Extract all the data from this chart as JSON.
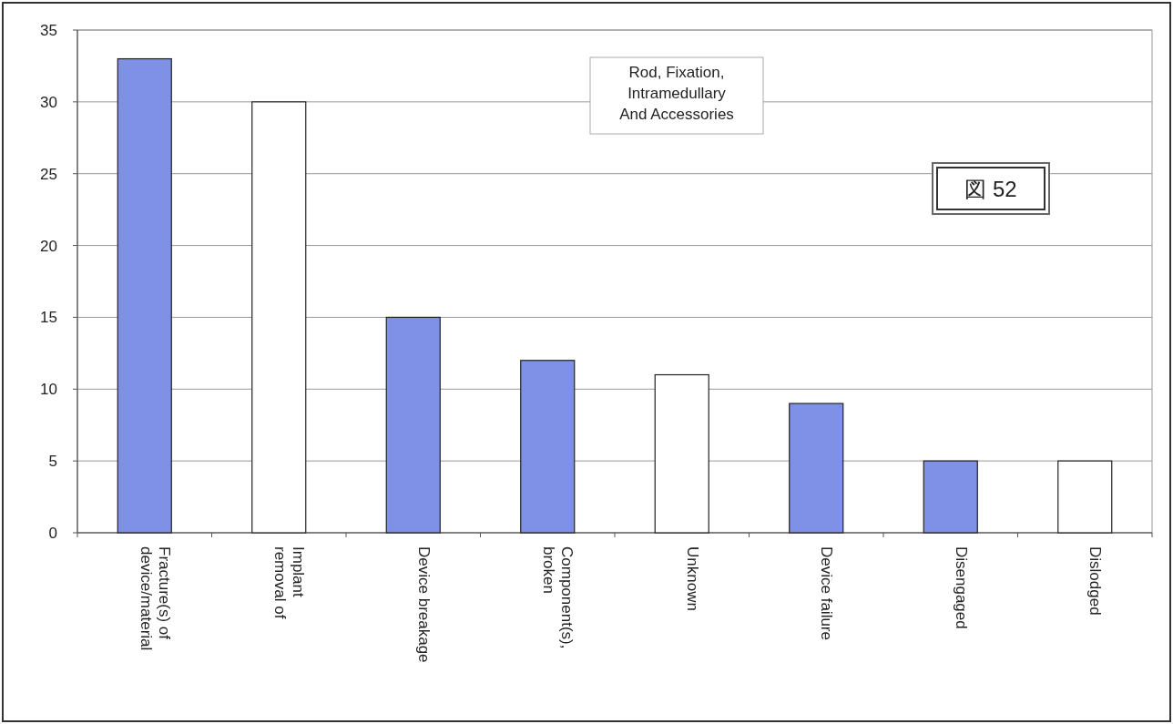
{
  "chart_data": {
    "type": "bar",
    "categories": [
      "Fracture(s) of\ndevice/material",
      "Implant\nremoval of",
      "Device breakage",
      "Component(s),\nbroken",
      "Unknown",
      "Device failure",
      "Disengaged",
      "Dislodged"
    ],
    "values": [
      33,
      30,
      15,
      12,
      11,
      9,
      5,
      5
    ],
    "colors": [
      "#7f91e6",
      "#ffffff",
      "#7f91e6",
      "#7f91e6",
      "#ffffff",
      "#7f91e6",
      "#7f91e6",
      "#ffffff"
    ],
    "ylim": [
      0,
      35
    ],
    "yticks": [
      0,
      5,
      10,
      15,
      20,
      25,
      30,
      35
    ],
    "grid": "y",
    "annotations": [
      "Rod, Fixation,\nIntramedullary\nAnd Accessories",
      "図 52"
    ]
  }
}
